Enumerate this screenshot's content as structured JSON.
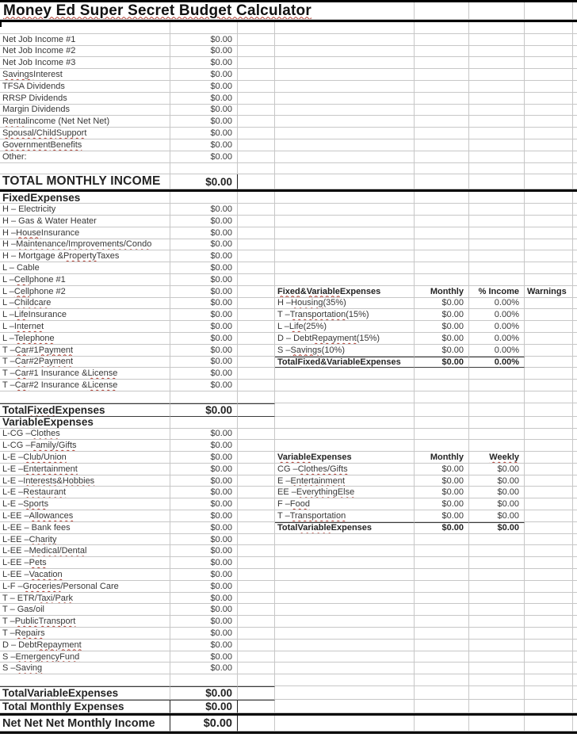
{
  "style": {
    "spellcheck_marker": "~",
    "spellcheck_color": "#b03a2e",
    "grid_color": "#c7c7c7",
    "divider_color": "#000000"
  },
  "title": "~Money Ed Super Secret Budget Calculator~",
  "income": {
    "rows": [
      {
        "label": "Net Job Income #1",
        "value": "$0.00"
      },
      {
        "label": "Net Job Income #2",
        "value": "$0.00"
      },
      {
        "label": "Net Job Income #3",
        "value": "$0.00"
      },
      {
        "label": "~Savings~ Interest",
        "value": "$0.00"
      },
      {
        "label": "TFSA Dividends",
        "value": "$0.00"
      },
      {
        "label": "RRSP Dividends",
        "value": "$0.00"
      },
      {
        "label": "Margin Dividends",
        "value": "$0.00"
      },
      {
        "label": "~Rental~ income (Net Net Net)",
        "value": "$0.00"
      },
      {
        "label": "~Spousal/Child~ ~Support~",
        "value": "$0.00"
      },
      {
        "label": "~Government~ ~Benefits~",
        "value": "$0.00"
      },
      {
        "label": "Other:",
        "value": "$0.00"
      }
    ],
    "total": {
      "label": "TOTAL MONTHLY INCOME",
      "value": "$0.00"
    }
  },
  "fixed": {
    "header": "~Fixed~ Expenses",
    "rows": [
      {
        "label": "H – Electricity",
        "value": "$0.00"
      },
      {
        "label": "H – Gas & Water Heater",
        "value": "$0.00"
      },
      {
        "label": "H – ~House~ Insurance",
        "value": "$0.00"
      },
      {
        "label": "H – ~Maintenance/Improvements/Condo~",
        "value": "$0.00"
      },
      {
        "label": "H – Mortgage & ~Property~ Taxes",
        "value": "$0.00"
      },
      {
        "label": "L – Cable",
        "value": "$0.00"
      },
      {
        "label": "L – ~Cell~ phone #1",
        "value": "$0.00"
      },
      {
        "label": "L – ~Cell~ phone #2",
        "value": "$0.00"
      },
      {
        "label": "L – ~Childcare~",
        "value": "$0.00"
      },
      {
        "label": "L – ~Life~ Insurance",
        "value": "$0.00"
      },
      {
        "label": "L – ~Internet~",
        "value": "$0.00"
      },
      {
        "label": "L – ~Telephone~",
        "value": "$0.00"
      },
      {
        "label": "T – ~Car~ #1 ~Payment~",
        "value": "$0.00"
      },
      {
        "label": "T – ~Car~ #2 ~Payment~",
        "value": "$0.00"
      },
      {
        "label": "T – ~Car~ #1 Insurance & ~License~",
        "value": "$0.00"
      },
      {
        "label": "T – ~Car~ #2 Insurance & ~License~",
        "value": "$0.00"
      }
    ],
    "total": {
      "label": "Total ~Fixed~ Expenses",
      "value": "$0.00"
    }
  },
  "variable": {
    "header": "~Variable~ Expenses",
    "rows": [
      {
        "label": "L-CG – ~Clothes~",
        "value": "$0.00"
      },
      {
        "label": "L-CG – ~Family/Gifts~",
        "value": "$0.00"
      },
      {
        "label": "L-E – ~Club/Union~",
        "value": "$0.00"
      },
      {
        "label": "L-E – ~Entertainment~",
        "value": "$0.00"
      },
      {
        "label": "L-E – ~Interests~ & ~Hobbies~",
        "value": "$0.00"
      },
      {
        "label": "L-E – ~Restaurant~",
        "value": "$0.00"
      },
      {
        "label": "L-E – ~Sports~",
        "value": "$0.00"
      },
      {
        "label": "L-EE – ~Allowances~",
        "value": "$0.00"
      },
      {
        "label": "L-EE – Bank fees",
        "value": "$0.00"
      },
      {
        "label": "L-EE – ~Charity~",
        "value": "$0.00"
      },
      {
        "label": "L-EE – ~Medical/Dental~",
        "value": "$0.00"
      },
      {
        "label": "L-EE – ~Pets~",
        "value": "$0.00"
      },
      {
        "label": "L-EE – ~Vacation~",
        "value": "$0.00"
      },
      {
        "label": "L-F – ~Groceries~/Personal Care",
        "value": "$0.00"
      },
      {
        "label": "T – ETR/~Taxi~/~Park~",
        "value": "$0.00"
      },
      {
        "label": "T – Gas/oil",
        "value": "$0.00"
      },
      {
        "label": "T – ~Public~ ~Transport~",
        "value": "$0.00"
      },
      {
        "label": "T – ~Repairs~",
        "value": "$0.00"
      },
      {
        "label": "D – Debt ~Repayment~",
        "value": "$0.00"
      },
      {
        "label": "S – ~Emergency~ ~Fund~",
        "value": "$0.00"
      },
      {
        "label": "S – ~Saving~",
        "value": "$0.00"
      }
    ],
    "total": {
      "label": "Total ~Variable~ Expenses",
      "value": "$0.00"
    }
  },
  "summary": {
    "total_monthly_expenses": {
      "label": "Total Monthly Expenses",
      "value": "$0.00"
    },
    "net": {
      "label": "Net Net Net Monthly Income",
      "value": "$0.00"
    }
  },
  "ratio_table": {
    "title": "~Fixed~ & ~Variable~ Expenses",
    "col_monthly": "Monthly",
    "col_pct": "% Income",
    "col_warnings": "Warnings",
    "rows": [
      {
        "label": "H – ~Housing~ (35%)",
        "monthly": "$0.00",
        "pct": "0.00%"
      },
      {
        "label": "T – ~Transportation~ (15%)",
        "monthly": "$0.00",
        "pct": "0.00%"
      },
      {
        "label": "L – ~Life~ (25%)",
        "monthly": "$0.00",
        "pct": "0.00%"
      },
      {
        "label": "D – Debt ~Repayment~ (15%)",
        "monthly": "$0.00",
        "pct": "0.00%"
      },
      {
        "label": "S – ~Savings~ (10%)",
        "monthly": "$0.00",
        "pct": "0.00%"
      }
    ],
    "total": {
      "label": "Total ~Fixed~ & ~Variable~ Expenses",
      "monthly": "$0.00",
      "pct": "0.00%"
    }
  },
  "weekly_table": {
    "title": "~Variable~ Expenses",
    "col_monthly": "Monthly",
    "col_weekly": "~Weekly~",
    "rows": [
      {
        "label": "CG – ~Clothes/Gifts~",
        "monthly": "$0.00",
        "weekly": "$0.00"
      },
      {
        "label": "E – ~Entertainment~",
        "monthly": "$0.00",
        "weekly": "$0.00"
      },
      {
        "label": "EE – ~Everything~ ~Else~",
        "monthly": "$0.00",
        "weekly": "$0.00"
      },
      {
        "label": "F – ~Food~",
        "monthly": "$0.00",
        "weekly": "$0.00"
      },
      {
        "label": "T – ~Transportation~",
        "monthly": "$0.00",
        "weekly": "$0.00"
      }
    ],
    "total": {
      "label": "Total ~Variable~ Expenses",
      "monthly": "$0.00",
      "weekly": "$0.00"
    }
  }
}
